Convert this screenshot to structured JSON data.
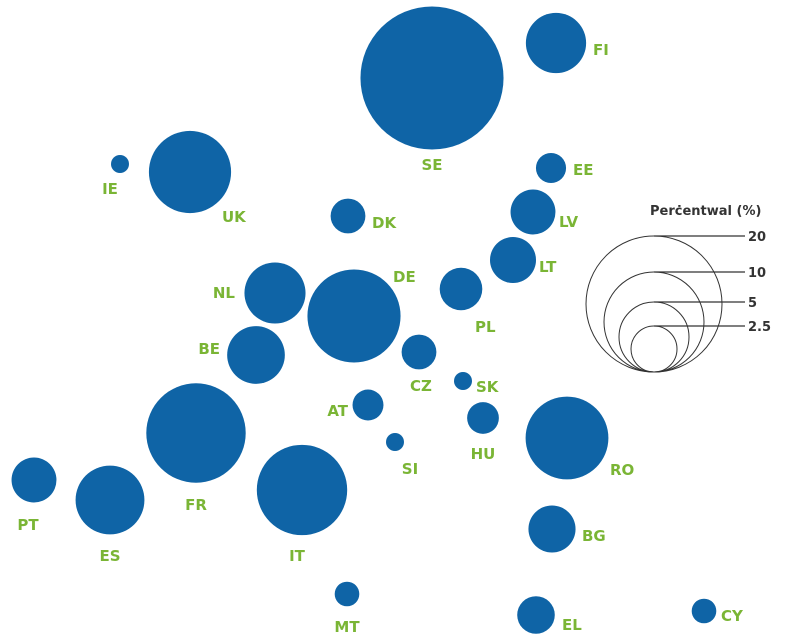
{
  "chart_data": {
    "type": "bubble-map",
    "legend": {
      "title": "Perċentwal (%)",
      "sizes": [
        20,
        10,
        5,
        2.5
      ],
      "size_labels": [
        "20",
        "10",
        "5",
        "2.5"
      ]
    },
    "colors": {
      "bubble": "#0f64a6",
      "label": "#7ab535",
      "legend": "#333333"
    },
    "countries": [
      {
        "code": "SE",
        "value": 20.3
      },
      {
        "code": "FI",
        "value": 3.6
      },
      {
        "code": "IE",
        "value": 0.15
      },
      {
        "code": "UK",
        "value": 6.7
      },
      {
        "code": "EE",
        "value": 0.9
      },
      {
        "code": "LV",
        "value": 2.0
      },
      {
        "code": "DK",
        "value": 1.2
      },
      {
        "code": "LT",
        "value": 2.1
      },
      {
        "code": "NL",
        "value": 3.7
      },
      {
        "code": "DE",
        "value": 8.6
      },
      {
        "code": "PL",
        "value": 1.8
      },
      {
        "code": "BE",
        "value": 3.3
      },
      {
        "code": "CZ",
        "value": 1.2
      },
      {
        "code": "SK",
        "value": 0.15
      },
      {
        "code": "AT",
        "value": 0.95
      },
      {
        "code": "HU",
        "value": 1.0
      },
      {
        "code": "SI",
        "value": 0.15
      },
      {
        "code": "FR",
        "value": 9.8
      },
      {
        "code": "RO",
        "value": 6.8
      },
      {
        "code": "PT",
        "value": 2.0
      },
      {
        "code": "ES",
        "value": 4.7
      },
      {
        "code": "IT",
        "value": 8.1
      },
      {
        "code": "BG",
        "value": 2.2
      },
      {
        "code": "MT",
        "value": 0.6
      },
      {
        "code": "EL",
        "value": 1.4
      },
      {
        "code": "CY",
        "value": 0.6
      }
    ]
  }
}
